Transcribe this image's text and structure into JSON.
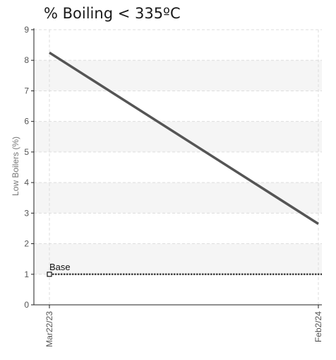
{
  "chart_data": {
    "type": "line",
    "title": "% Boiling < 335ºC",
    "ylabel": "Low Boilers (%)",
    "xlabel": "",
    "categories": [
      "Mar22/23",
      "Feb2/24"
    ],
    "ylim": [
      0,
      9
    ],
    "yticks": [
      0,
      1,
      2,
      3,
      4,
      5,
      6,
      7,
      8,
      9
    ],
    "grid": true,
    "banded_background": true,
    "series": [
      {
        "values": [
          8.25,
          2.65
        ],
        "color": "#555555",
        "style": "solid"
      }
    ],
    "reference_lines": [
      {
        "label": "Base",
        "value": 1,
        "color": "#444444",
        "style": "dotted"
      }
    ]
  }
}
